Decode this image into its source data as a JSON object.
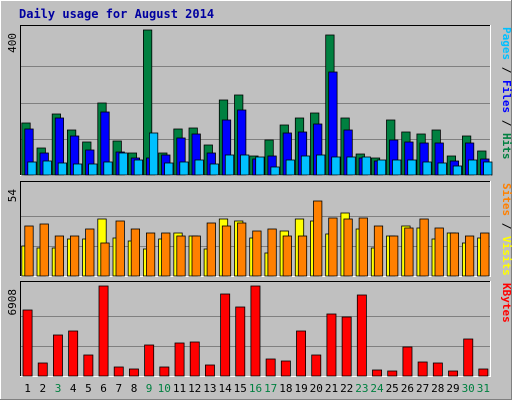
{
  "chart_data": {
    "type": "bar",
    "title": "Daily usage for August 2014",
    "days": [
      "1",
      "2",
      "3",
      "4",
      "5",
      "6",
      "7",
      "8",
      "9",
      "10",
      "11",
      "12",
      "13",
      "14",
      "15",
      "16",
      "17",
      "18",
      "19",
      "20",
      "21",
      "22",
      "23",
      "24",
      "25",
      "26",
      "27",
      "28",
      "29",
      "30",
      "31"
    ],
    "weekend_days": [
      "3",
      "9",
      "10",
      "16",
      "17",
      "23",
      "24",
      "30",
      "31"
    ],
    "panels": [
      {
        "id": "top",
        "ymax_label": "400",
        "ymax": 400,
        "legend": [
          {
            "text": "Pages",
            "color": "#00c0ff"
          },
          {
            "text": " / ",
            "color": "#000000"
          },
          {
            "text": "Files",
            "color": "#0000ff"
          },
          {
            "text": " / ",
            "color": "#000000"
          },
          {
            "text": "Hits",
            "color": "#008040"
          }
        ],
        "series": [
          {
            "name": "Hits",
            "color": "#008040",
            "values": [
              143,
              75,
              168,
              124,
              91,
              199,
              94,
              61,
              400,
              62,
              128,
              130,
              84,
              207,
              220,
              52,
              96,
              137,
              157,
              171,
              386,
              157,
              58,
              48,
              151,
              118,
              112,
              123,
              52,
              108,
              67
            ]
          },
          {
            "name": "Files",
            "color": "#0000ff",
            "values": [
              128,
              60,
              157,
              108,
              70,
              175,
              64,
              47,
              48,
              56,
              103,
              114,
              60,
              153,
              179,
              44,
              52,
              115,
              119,
              140,
              285,
              124,
              46,
              38,
              97,
              91,
              87,
              88,
              38,
              87,
              44
            ]
          },
          {
            "name": "Pages",
            "color": "#00c0ff",
            "values": [
              36,
              38,
              33,
              31,
              31,
              35,
              62,
              40,
              115,
              33,
              36,
              41,
              30,
              54,
              55,
              51,
              22,
              40,
              53,
              56,
              51,
              50,
              50,
              41,
              40,
              42,
              35,
              33,
              26,
              40,
              35
            ]
          }
        ]
      },
      {
        "id": "mid",
        "ymax_label": "54",
        "ymax": 54,
        "legend": [
          {
            "text": "Sites",
            "color": "#ff8000"
          },
          {
            "text": " / ",
            "color": "#000000"
          },
          {
            "text": "Visits",
            "color": "#ffff00"
          }
        ],
        "series": [
          {
            "name": "Visits",
            "color": "#ffff00",
            "values": [
              18,
              17,
              17,
              22,
              22,
              34,
              23,
              21,
              16,
              22,
              26,
              24,
              16,
              34,
              33,
              23,
              14,
              27,
              34,
              33,
              25,
              38,
              28,
              17,
              24,
              30,
              29,
              22,
              26,
              20,
              23
            ]
          },
          {
            "name": "Sites",
            "color": "#ff8000",
            "values": [
              30,
              31,
              24,
              24,
              28,
              20,
              33,
              28,
              26,
              26,
              24,
              24,
              32,
              30,
              32,
              27,
              28,
              24,
              24,
              45,
              35,
              34,
              35,
              30,
              24,
              29,
              34,
              29,
              26,
              24,
              26
            ]
          }
        ]
      },
      {
        "id": "bot",
        "ymax_label": "6908",
        "ymax": 6908,
        "legend": [
          {
            "text": "KBytes",
            "color": "#ff0000"
          }
        ],
        "series": [
          {
            "name": "KBytes",
            "color": "#ff0000",
            "values": [
              5050,
              1020,
              3140,
              3450,
              1635,
              6908,
              664,
              568,
              2400,
              664,
              2510,
              2590,
              826,
              6300,
              5320,
              6908,
              1320,
              1170,
              3430,
              1620,
              4750,
              4520,
              6230,
              443,
              417,
              2260,
              1090,
              1030,
              397,
              2820,
              560
            ]
          }
        ]
      }
    ]
  }
}
